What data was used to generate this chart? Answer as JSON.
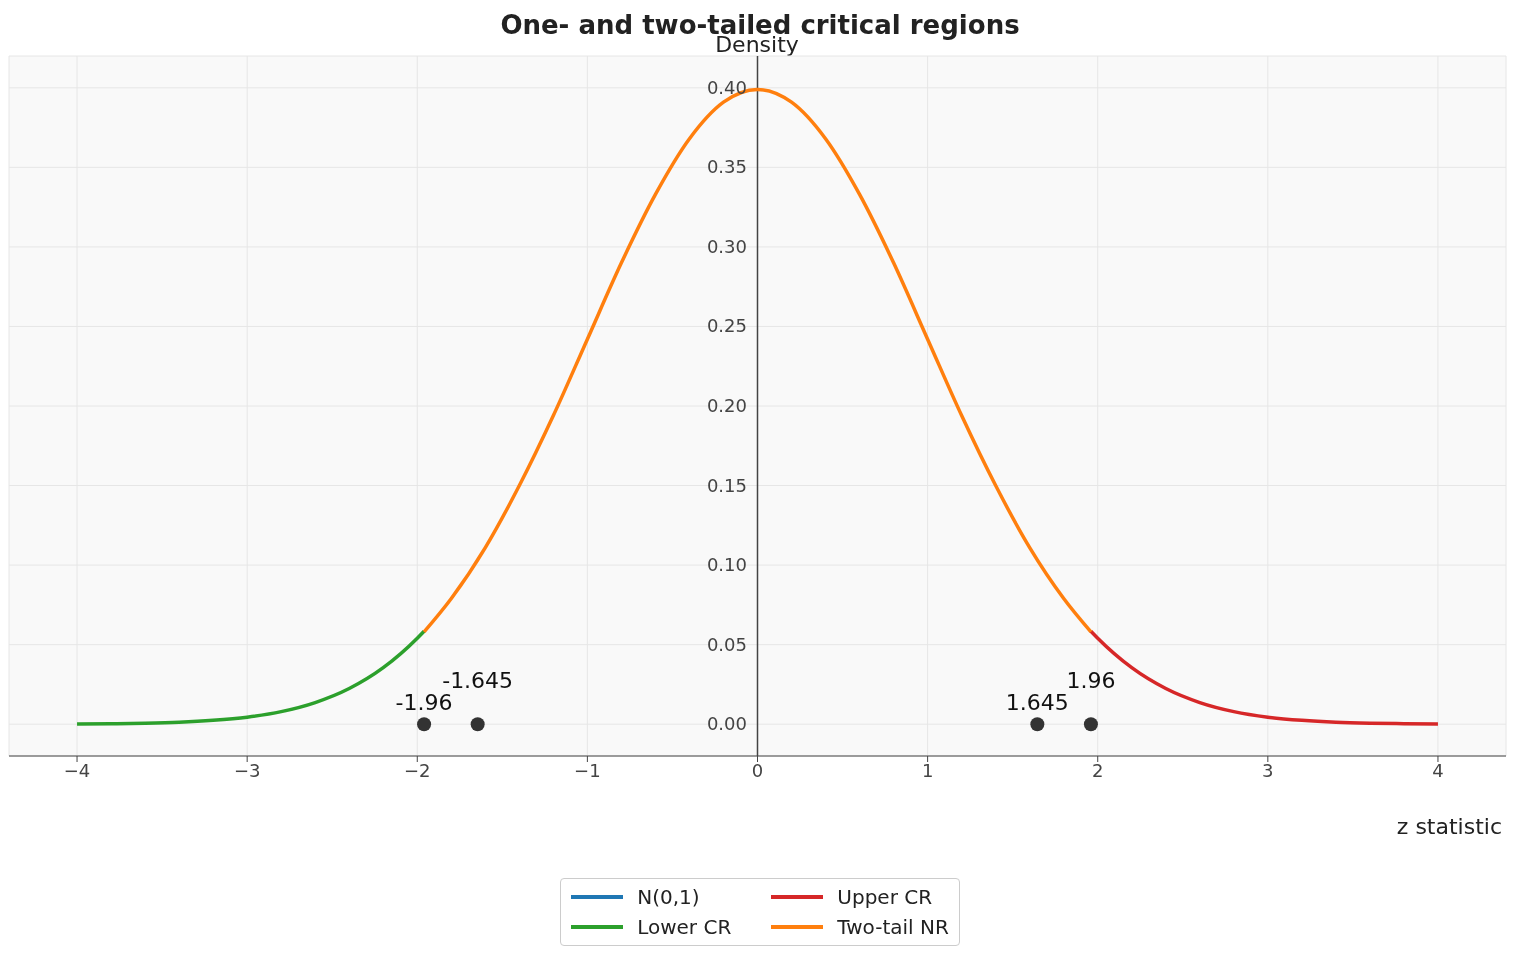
{
  "chart_data": {
    "type": "line",
    "title": "One- and two-tailed critical regions",
    "xlabel": "z statistic",
    "ylabel": "Density",
    "xlim": [
      -4.4,
      4.4
    ],
    "xticks": [
      {
        "value": -4,
        "label": "−4"
      },
      {
        "value": -3,
        "label": "−3"
      },
      {
        "value": -2,
        "label": "−2"
      },
      {
        "value": -1,
        "label": "−1"
      },
      0,
      1,
      2,
      3,
      4
    ],
    "ylim": [
      -0.02,
      0.42
    ],
    "yticks": [
      {
        "value": 0,
        "label": "0.00"
      },
      {
        "value": 0.05,
        "label": "0.05"
      },
      {
        "value": 0.1,
        "label": "0.10"
      },
      {
        "value": 0.15,
        "label": "0.15"
      },
      {
        "value": 0.2,
        "label": "0.20"
      },
      {
        "value": 0.25,
        "label": "0.25"
      },
      {
        "value": 0.3,
        "label": "0.30"
      },
      {
        "value": 0.35,
        "label": "0.35"
      },
      {
        "value": 0.4,
        "label": "0.40"
      }
    ],
    "grid": true,
    "legend": "bottom",
    "series": [
      {
        "name": "N(0,1)",
        "color": "#1f77b4"
      },
      {
        "name": "Lower CR",
        "color": "#2ca02c",
        "x": [
          -4,
          -3.8,
          -3.6,
          -3.4,
          -3.2,
          -3,
          -2.8,
          -2.6,
          -2.4,
          -2.2,
          -2,
          -1.96
        ],
        "values": [
          0.0001,
          0.0003,
          0.0006,
          0.0012,
          0.0024,
          0.0044,
          0.0079,
          0.0136,
          0.0224,
          0.0355,
          0.054,
          0.0584
        ]
      },
      {
        "name": "Upper CR",
        "color": "#d62728",
        "x": [
          1.96,
          2,
          2.2,
          2.4,
          2.6,
          2.8,
          3,
          3.2,
          3.4,
          3.6,
          3.8,
          4
        ],
        "values": [
          0.0584,
          0.054,
          0.0355,
          0.0224,
          0.0136,
          0.0079,
          0.0044,
          0.0024,
          0.0012,
          0.0006,
          0.0003,
          0.0001
        ]
      },
      {
        "name": "Two-tail NR",
        "color": "#ff7f0e",
        "x": [
          -1.96,
          -1.8,
          -1.6,
          -1.4,
          -1.2,
          -1,
          -0.8,
          -0.6,
          -0.4,
          -0.2,
          0,
          0.2,
          0.4,
          0.6,
          0.8,
          1,
          1.2,
          1.4,
          1.6,
          1.8,
          1.96
        ],
        "values": [
          0.058,
          0.079,
          0.111,
          0.15,
          0.194,
          0.242,
          0.29,
          0.333,
          0.368,
          0.391,
          0.399,
          0.391,
          0.368,
          0.333,
          0.29,
          0.242,
          0.194,
          0.15,
          0.111,
          0.079,
          0.058
        ]
      },
      {
        "type": "scatter",
        "color": "#333333",
        "marker": "circle",
        "x": [
          -1.96,
          -1.645,
          1.645,
          1.96
        ],
        "values": [
          0,
          0,
          0,
          0
        ]
      }
    ],
    "annotations": [
      {
        "text": "-1.96",
        "x": -1.96,
        "y": 0
      },
      {
        "text": "-1.645",
        "x": -1.645,
        "y": 0
      },
      {
        "text": "1.645",
        "x": 1.645,
        "y": 0
      },
      {
        "text": "1.96",
        "x": 1.96,
        "y": 0
      }
    ]
  }
}
